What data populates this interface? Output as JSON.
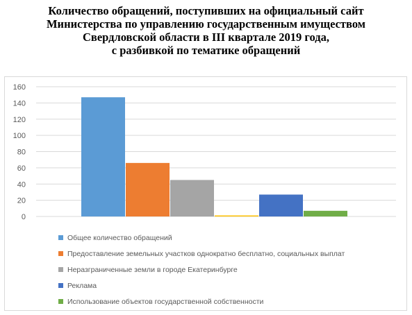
{
  "chart_data": {
    "type": "bar",
    "title_lines": [
      "Количество обращений, поступивших на официальный сайт",
      "Министерства по управлению государственным имуществом",
      "Свердловской области в III квартале 2019 года,",
      "с разбивкой по тематике обращений"
    ],
    "ylim": [
      0,
      160
    ],
    "yticks": [
      0,
      20,
      40,
      60,
      80,
      100,
      120,
      140,
      160
    ],
    "grid": true,
    "legend_position": "bottom",
    "series": [
      {
        "name": "Общее количество обращений",
        "value": 147,
        "color": "#5b9bd5"
      },
      {
        "name": "Предоставление земельных участков однократно бесплатно, социальных выплат",
        "value": 66,
        "color": "#ed7d31"
      },
      {
        "name": "Неразграниченные земли в городе Екатеринбурге",
        "value": 45,
        "color": "#a5a5a5"
      },
      {
        "name": "",
        "value": 1,
        "color": "#ffc000"
      },
      {
        "name": "Реклама",
        "value": 27,
        "color": "#4472c4"
      },
      {
        "name": "Использование объектов государственной собственности",
        "value": 7,
        "color": "#70ad47"
      }
    ]
  }
}
